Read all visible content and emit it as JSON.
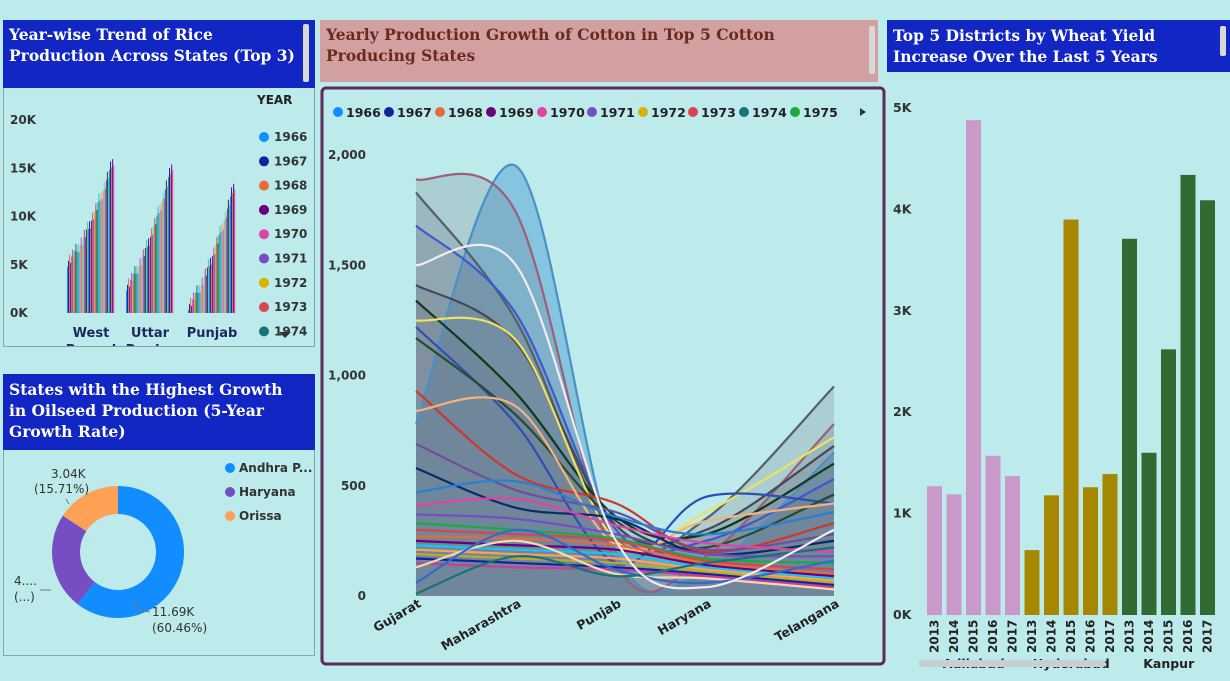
{
  "rice_panel": {
    "title": "Year-wise Trend of Rice Production Across States (Top 3)",
    "legend_title": "YEAR",
    "legend_items": [
      "1966",
      "1967",
      "1968",
      "1969",
      "1970",
      "1971",
      "1972",
      "1973",
      "1974"
    ],
    "legend_colors": [
      "#118dff",
      "#12239e",
      "#e66c37",
      "#6b007b",
      "#e044a7",
      "#744ec2",
      "#d9b300",
      "#d64550",
      "#197278"
    ],
    "more_icon": "triangle-down-icon"
  },
  "oilseed_panel": {
    "title": "States with the Highest Growth in Oilseed Production (5-Year Growth Rate)",
    "legend_items": [
      "Andhra P...",
      "Haryana",
      "Orissa"
    ],
    "legend_colors": [
      "#118dff",
      "#744ec2",
      "#ffa154"
    ],
    "labels": {
      "orissa_value": "3.04K",
      "orissa_pct": "(15.71%)",
      "haryana_value": "4....",
      "haryana_pct": "(...)",
      "andhra_value": "11.69K",
      "andhra_pct": "(60.46%)"
    }
  },
  "cotton_panel": {
    "title": "Yearly Production Growth of Cotton in Top 5 Cotton Producing States",
    "legend_items": [
      "1966",
      "1967",
      "1968",
      "1969",
      "1970",
      "1971",
      "1972",
      "1973",
      "1974",
      "1975"
    ],
    "legend_colors": [
      "#118dff",
      "#12239e",
      "#e66c37",
      "#6b007b",
      "#e044a7",
      "#744ec2",
      "#d9b300",
      "#d64550",
      "#197278",
      "#1aab40"
    ],
    "next_icon": "triangle-right-icon"
  },
  "wheat_panel": {
    "title": "Top 5 Districts by Wheat Yield Increase Over the Last 5 Years"
  },
  "chart_data": [
    {
      "type": "bar",
      "name": "rice",
      "categories": [
        "West Bengal",
        "Uttar Prad...",
        "Punjab"
      ],
      "category_lines": [
        [
          "West",
          "Bengal"
        ],
        [
          "Uttar",
          "Prad..."
        ],
        [
          "Punjab"
        ]
      ],
      "yticks": [
        "20K",
        "15K",
        "10K",
        "5K",
        "0K"
      ],
      "ylim": [
        0,
        20000
      ],
      "series_min_max": [
        [
          5500,
          16000
        ],
        [
          3000,
          15500
        ],
        [
          1000,
          13500
        ]
      ]
    },
    {
      "type": "pie",
      "name": "oilseed",
      "slices": [
        {
          "label": "Andhra P...",
          "value": 11.69,
          "pct": 60.46
        },
        {
          "label": "Haryana",
          "value": 4.6,
          "pct": 23.83
        },
        {
          "label": "Orissa",
          "value": 3.04,
          "pct": 15.71
        }
      ]
    },
    {
      "type": "area",
      "name": "cotton",
      "categories": [
        "Gujarat",
        "Maharashtra",
        "Punjab",
        "Haryana",
        "Telangana"
      ],
      "yticks": [
        "2,000",
        "1,500",
        "1,000",
        "500",
        "0"
      ],
      "ylim": [
        0,
        2000
      ],
      "series": [
        {
          "values": [
            780,
            1950,
            200,
            120,
            650
          ]
        },
        {
          "values": [
            1890,
            1740,
            150,
            180,
            780
          ]
        },
        {
          "values": [
            1830,
            1250,
            260,
            350,
            950
          ]
        },
        {
          "values": [
            1680,
            1280,
            300,
            250,
            530
          ]
        },
        {
          "values": [
            1410,
            1150,
            320,
            300,
            680
          ]
        },
        {
          "values": [
            1340,
            920,
            360,
            280,
            600
          ]
        },
        {
          "values": [
            1250,
            1160,
            250,
            380,
            720
          ]
        },
        {
          "values": [
            1220,
            780,
            150,
            450,
            420
          ]
        },
        {
          "values": [
            1170,
            820,
            340,
            220,
            460
          ]
        },
        {
          "values": [
            930,
            550,
            420,
            200,
            330
          ]
        },
        {
          "values": [
            840,
            860,
            230,
            340,
            420
          ]
        },
        {
          "values": [
            690,
            480,
            380,
            210,
            280
          ]
        },
        {
          "values": [
            580,
            400,
            350,
            190,
            250
          ]
        },
        {
          "values": [
            470,
            520,
            360,
            280,
            380
          ]
        },
        {
          "values": [
            410,
            440,
            320,
            240,
            200
          ]
        },
        {
          "values": [
            370,
            350,
            280,
            190,
            180
          ]
        },
        {
          "values": [
            330,
            300,
            260,
            170,
            150
          ]
        },
        {
          "values": [
            300,
            280,
            250,
            160,
            120
          ]
        },
        {
          "values": [
            270,
            260,
            230,
            150,
            100
          ]
        },
        {
          "values": [
            250,
            230,
            210,
            140,
            90
          ]
        },
        {
          "values": [
            230,
            210,
            190,
            130,
            80
          ]
        },
        {
          "values": [
            210,
            190,
            170,
            120,
            70
          ]
        },
        {
          "values": [
            190,
            170,
            150,
            110,
            60
          ]
        },
        {
          "values": [
            170,
            150,
            130,
            100,
            50
          ]
        },
        {
          "values": [
            150,
            130,
            120,
            90,
            40
          ]
        },
        {
          "values": [
            130,
            250,
            100,
            80,
            30
          ]
        },
        {
          "values": [
            60,
            300,
            120,
            60,
            160
          ]
        },
        {
          "values": [
            10,
            180,
            90,
            150,
            220
          ]
        },
        {
          "values": [
            1500,
            1500,
            250,
            40,
            300
          ]
        }
      ]
    },
    {
      "type": "bar",
      "name": "wheat",
      "groups": [
        "Adilabad",
        "Hyderabad",
        "Kanpur"
      ],
      "years": [
        "2013",
        "2014",
        "2015",
        "2016",
        "2017"
      ],
      "group_colors": [
        "#c99ac9",
        "#a68702",
        "#2f6b33"
      ],
      "values": [
        [
          1270,
          1190,
          4880,
          1570,
          1370
        ],
        [
          640,
          1180,
          3900,
          1260,
          1390
        ],
        [
          3710,
          1600,
          2620,
          4340,
          4090
        ]
      ],
      "yticks": [
        "5K",
        "4K",
        "3K",
        "2K",
        "1K",
        "0K"
      ],
      "ylim": [
        0,
        5000
      ]
    }
  ]
}
